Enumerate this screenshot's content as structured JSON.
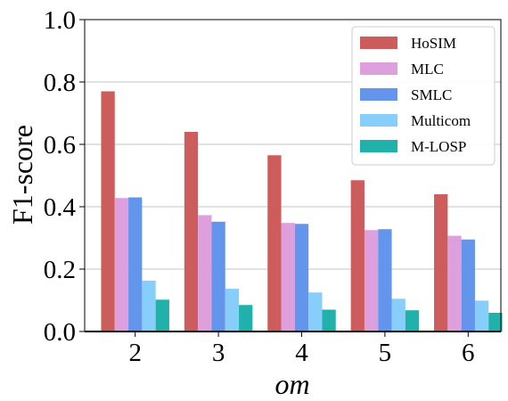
{
  "chart_data": {
    "type": "bar",
    "categories": [
      "2",
      "3",
      "4",
      "5",
      "6"
    ],
    "series": [
      {
        "name": "HoSIM",
        "color": "#CD5C5C",
        "values": [
          0.77,
          0.64,
          0.565,
          0.485,
          0.44
        ]
      },
      {
        "name": "MLC",
        "color": "#DDA0DD",
        "values": [
          0.428,
          0.373,
          0.348,
          0.325,
          0.307
        ]
      },
      {
        "name": "SMLC",
        "color": "#6495ED",
        "values": [
          0.43,
          0.352,
          0.345,
          0.328,
          0.295
        ]
      },
      {
        "name": "Multicom",
        "color": "#87CEFA",
        "values": [
          0.163,
          0.137,
          0.125,
          0.105,
          0.099
        ]
      },
      {
        "name": "M-LOSP",
        "color": "#20B2AA",
        "values": [
          0.102,
          0.085,
          0.07,
          0.068,
          0.06
        ]
      }
    ],
    "xlabel": "om",
    "ylabel": "F1-score",
    "ylim": [
      0,
      1.0
    ],
    "yticks": [
      "0.0",
      "0.2",
      "0.4",
      "0.6",
      "0.8",
      "1.0"
    ],
    "grid": "horizontal",
    "legend_position": "top-right"
  }
}
